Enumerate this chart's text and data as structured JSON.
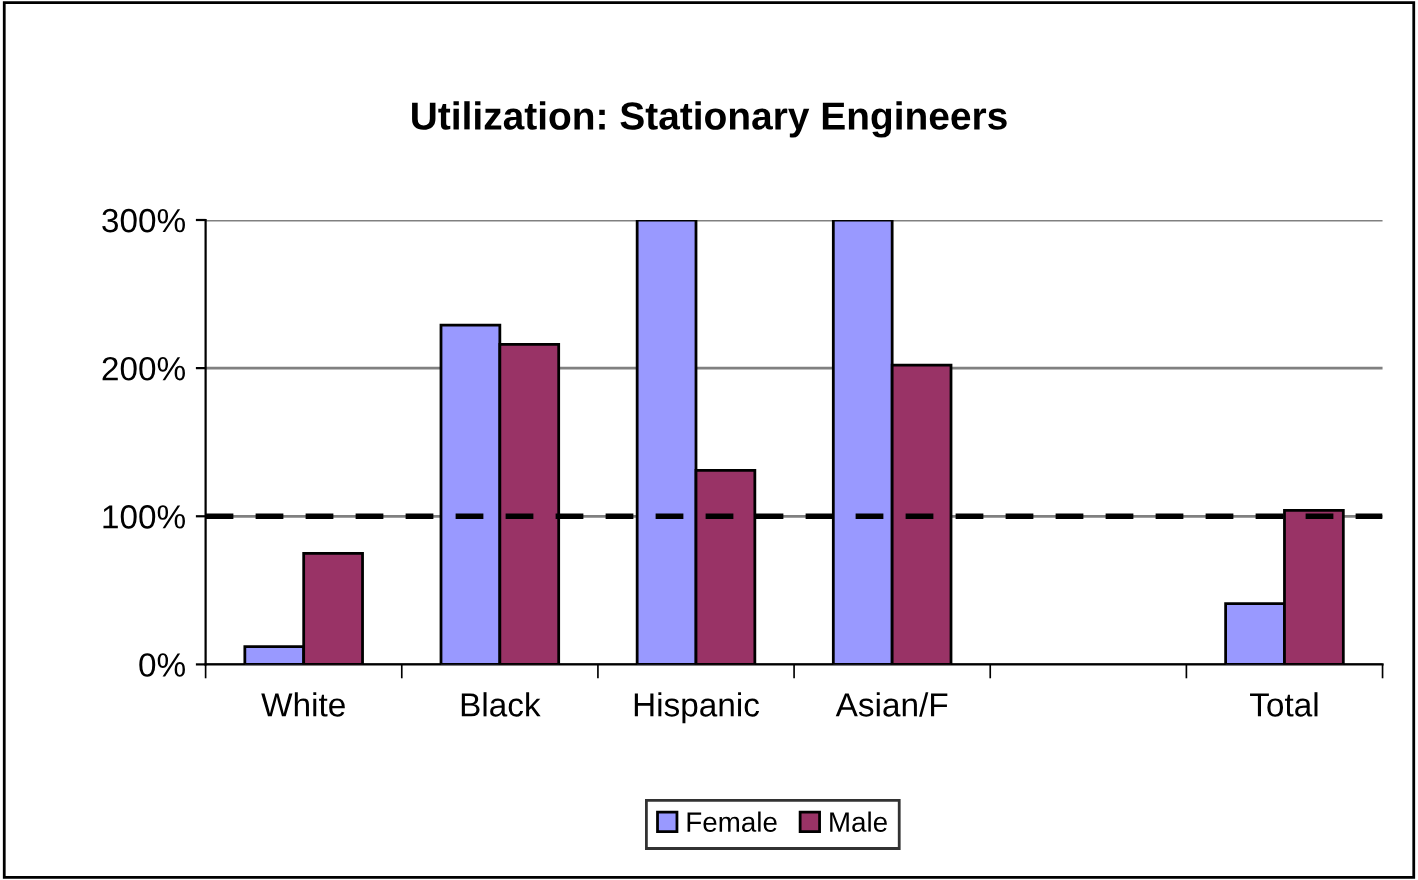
{
  "chart_data": {
    "type": "bar",
    "title": "Utilization: Stationary Engineers",
    "categories": [
      "White",
      "Black",
      "Hispanic",
      "Asian/F",
      null,
      "Total"
    ],
    "series": [
      {
        "name": "Female",
        "color": "#9999ff",
        "values": [
          12,
          229,
          300,
          300,
          null,
          41
        ]
      },
      {
        "name": "Male",
        "color": "#993366",
        "values": [
          75,
          216,
          131,
          202,
          null,
          104
        ]
      }
    ],
    "ylim": [
      0,
      300
    ],
    "yticks": [
      {
        "value": 0,
        "label": "0%"
      },
      {
        "value": 100,
        "label": "100%"
      },
      {
        "value": 200,
        "label": "200%"
      },
      {
        "value": 300,
        "label": "300%"
      }
    ],
    "grid": "y",
    "legend": "bottom",
    "ref_lines": [
      {
        "axis": "y",
        "value": 100,
        "line_style": "dashed",
        "color": "#000000"
      }
    ]
  }
}
